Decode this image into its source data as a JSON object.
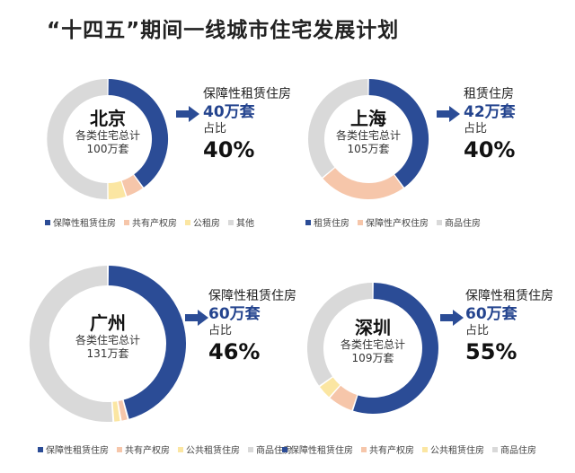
{
  "title": "“十四五”期间一线城市住宅发展计划",
  "colors": {
    "navy": "#2b4c96",
    "peach": "#f6c6aa",
    "yellow": "#fbe6a2",
    "gray": "#d9d9d9",
    "accent": "#24448e"
  },
  "center_sub_label": "各类住宅总计",
  "ratio_label": "占比",
  "chart_data": [
    {
      "type": "pie",
      "city": "北京",
      "total": "100万套",
      "highlight_category": "保障性租赁住房",
      "highlight_amount": "40万套",
      "highlight_share": "40%",
      "categories": [
        "保障性租赁住房",
        "共有产权房",
        "公租房",
        "其他"
      ],
      "values": [
        40,
        5,
        5,
        50
      ],
      "colors": [
        "#2b4c96",
        "#f6c6aa",
        "#fbe6a2",
        "#d9d9d9"
      ]
    },
    {
      "type": "pie",
      "city": "上海",
      "total": "105万套",
      "highlight_category": "租赁住房",
      "highlight_amount": "42万套",
      "highlight_share": "40%",
      "categories": [
        "租赁住房",
        "保障性产权住房",
        "商品住房"
      ],
      "values": [
        42,
        25,
        38
      ],
      "colors": [
        "#2b4c96",
        "#f6c6aa",
        "#d9d9d9"
      ]
    },
    {
      "type": "pie",
      "city": "广州",
      "total": "131万套",
      "highlight_category": "保障性租赁住房",
      "highlight_amount": "60万套",
      "highlight_share": "46%",
      "categories": [
        "保障性租赁住房",
        "共有产权房",
        "公共租赁住房",
        "商品住房"
      ],
      "values": [
        60,
        2,
        2,
        67
      ],
      "colors": [
        "#2b4c96",
        "#f6c6aa",
        "#fbe6a2",
        "#d9d9d9"
      ]
    },
    {
      "type": "pie",
      "city": "深圳",
      "total": "109万套",
      "highlight_category": "保障性租赁住房",
      "highlight_amount": "60万套",
      "highlight_share": "55%",
      "categories": [
        "保障性租赁住房",
        "共有产权房",
        "公共租赁住房",
        "商品住房"
      ],
      "values": [
        60,
        7,
        4,
        38
      ],
      "colors": [
        "#2b4c96",
        "#f6c6aa",
        "#fbe6a2",
        "#d9d9d9"
      ]
    }
  ]
}
